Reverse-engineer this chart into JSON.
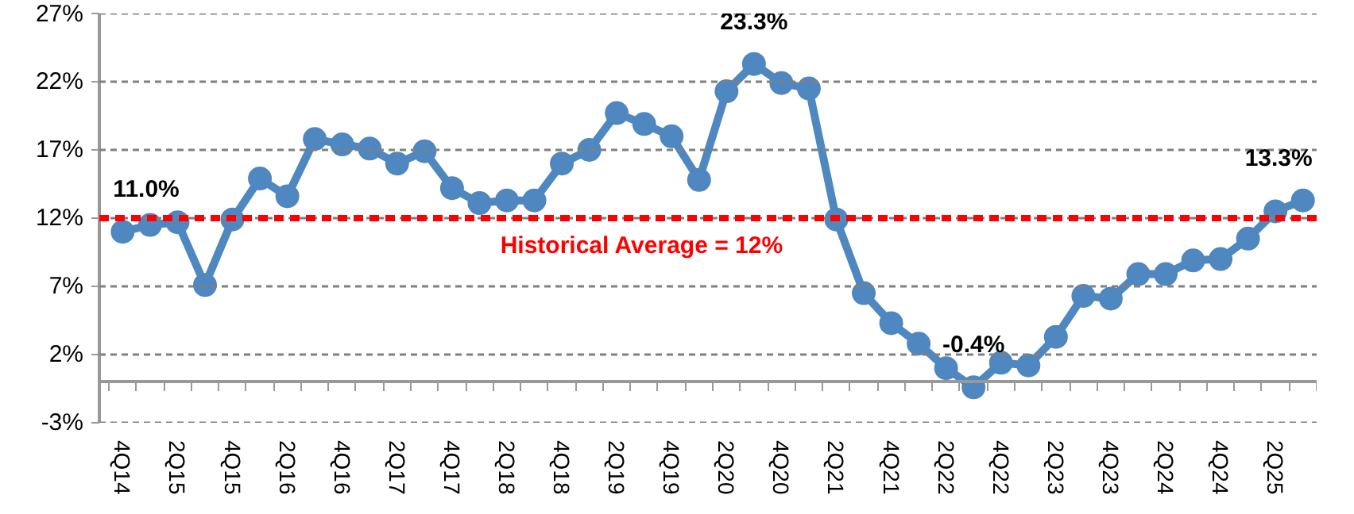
{
  "chart_data": {
    "type": "line",
    "categories": [
      "4Q14",
      null,
      "2Q15",
      null,
      "4Q15",
      null,
      "2Q16",
      null,
      "4Q16",
      null,
      "2Q17",
      null,
      "4Q17",
      null,
      "2Q18",
      null,
      "4Q18",
      null,
      "2Q19",
      null,
      "4Q19",
      null,
      "2Q20",
      null,
      "4Q20",
      null,
      "2Q21",
      null,
      "4Q21",
      null,
      "2Q22",
      null,
      "4Q22",
      null,
      "2Q23",
      null,
      "4Q23",
      null,
      "2Q24",
      null,
      "4Q24",
      null,
      "2Q25",
      null
    ],
    "series": [
      {
        "color": "#4f87c0",
        "values": [
          11.0,
          11.5,
          11.7,
          7.1,
          11.9,
          14.9,
          13.6,
          17.8,
          17.4,
          17.1,
          16.0,
          16.9,
          14.2,
          13.1,
          13.3,
          13.3,
          16.0,
          17.0,
          19.7,
          18.9,
          18.0,
          14.8,
          21.3,
          23.3,
          21.9,
          21.5,
          11.9,
          6.5,
          4.3,
          2.8,
          1.0,
          -0.4,
          1.4,
          1.2,
          3.3,
          6.3,
          6.1,
          7.9,
          7.9,
          8.9,
          9.0,
          10.5,
          12.5,
          13.3
        ],
        "value_labels": [
          "11.0%",
          null,
          null,
          null,
          null,
          null,
          null,
          null,
          null,
          null,
          null,
          null,
          null,
          null,
          null,
          null,
          null,
          null,
          null,
          null,
          null,
          null,
          null,
          "23.3%",
          null,
          null,
          null,
          null,
          null,
          null,
          null,
          "-0.4%",
          null,
          null,
          null,
          null,
          null,
          null,
          null,
          null,
          null,
          null,
          null,
          "13.3%"
        ]
      }
    ],
    "ylim": [
      -3,
      27
    ],
    "yticks": [
      {
        "value": -3,
        "label": "-3%"
      },
      {
        "value": 2,
        "label": "2%"
      },
      {
        "value": 7,
        "label": "7%"
      },
      {
        "value": 12,
        "label": "12%"
      },
      {
        "value": 17,
        "label": "17%"
      },
      {
        "value": 22,
        "label": "22%"
      },
      {
        "value": 27,
        "label": "27%"
      }
    ],
    "grid": "y",
    "marker": "circle",
    "line_style": "solid",
    "ref_lines": [
      {
        "axis": "y",
        "value": 12,
        "label": "Historical Average = 12%",
        "color": "#ff0000",
        "line_style": "dashed"
      }
    ]
  }
}
